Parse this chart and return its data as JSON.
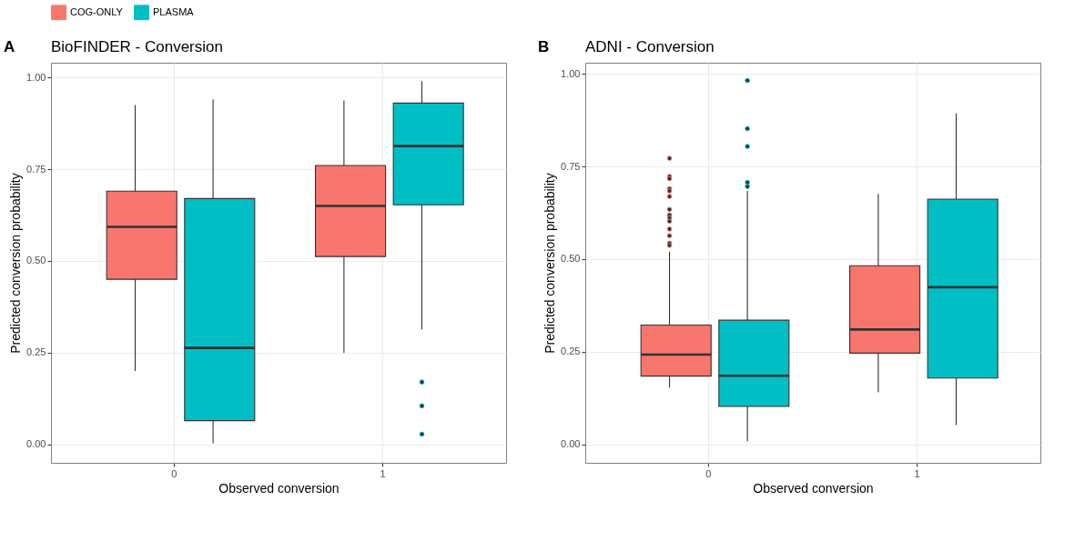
{
  "chart_data": [
    {
      "type": "box",
      "title": "BioFINDER - Conversion",
      "annotations": [
        "A"
      ],
      "xlabel": "Observed conversion",
      "ylabel": "Predicted conversion probability",
      "categories": [
        "0",
        "1"
      ],
      "ylim": [
        -0.05,
        1.04
      ],
      "yticks": [
        {
          "value": 0,
          "label": "0.00"
        },
        {
          "value": 0.25,
          "label": "0.25"
        },
        {
          "value": 0.5,
          "label": "0.50"
        },
        {
          "value": 0.75,
          "label": "0.75"
        },
        {
          "value": 1,
          "label": "1.00"
        }
      ],
      "grid": true,
      "legend": "top",
      "series": [
        {
          "name": "COG-ONLY",
          "color": "#f8766d",
          "boxes": [
            {
              "low": 0.2,
              "q1": 0.45,
              "median": 0.593,
              "q3": 0.69,
              "high": 0.925
            },
            {
              "low": 0.25,
              "q1": 0.512,
              "median": 0.65,
              "q3": 0.76,
              "high": 0.937
            }
          ]
        },
        {
          "name": "PLASMA",
          "color": "#00bfc4",
          "boxes": [
            {
              "low": 0.003,
              "q1": 0.065,
              "median": 0.263,
              "q3": 0.67,
              "high": 0.94
            },
            {
              "low": 0.313,
              "q1": 0.653,
              "median": 0.813,
              "q3": 0.93,
              "high": 0.99,
              "outliers": [
                0.17,
                0.105,
                0.028
              ]
            }
          ]
        }
      ]
    },
    {
      "type": "box",
      "title": "ADNI - Conversion",
      "annotations": [
        "B"
      ],
      "xlabel": "Observed conversion",
      "ylabel": "Predicted conversion probability",
      "categories": [
        "0",
        "1"
      ],
      "ylim": [
        -0.05,
        1.03
      ],
      "yticks": [
        {
          "value": 0,
          "label": "0.00"
        },
        {
          "value": 0.25,
          "label": "0.25"
        },
        {
          "value": 0.5,
          "label": "0.50"
        },
        {
          "value": 0.75,
          "label": "0.75"
        },
        {
          "value": 1,
          "label": "1.00"
        }
      ],
      "grid": true,
      "legend": "top",
      "series": [
        {
          "name": "COG-ONLY",
          "color": "#f8766d",
          "boxes": [
            {
              "low": 0.153,
              "q1": 0.184,
              "median": 0.242,
              "q3": 0.322,
              "high": 0.52,
              "outliers": [
                0.772,
                0.723,
                0.717,
                0.69,
                0.684,
                0.669,
                0.634,
                0.619,
                0.611,
                0.602,
                0.581,
                0.563,
                0.543,
                0.537
              ]
            },
            {
              "low": 0.14,
              "q1": 0.246,
              "median": 0.31,
              "q3": 0.482,
              "high": 0.676
            }
          ]
        },
        {
          "name": "PLASMA",
          "color": "#00bfc4",
          "boxes": [
            {
              "low": 0.008,
              "q1": 0.102,
              "median": 0.185,
              "q3": 0.335,
              "high": 0.684,
              "outliers": [
                0.982,
                0.852,
                0.804,
                0.707,
                0.696
              ]
            },
            {
              "low": 0.052,
              "q1": 0.179,
              "median": 0.424,
              "q3": 0.662,
              "high": 0.893
            }
          ]
        }
      ]
    }
  ]
}
